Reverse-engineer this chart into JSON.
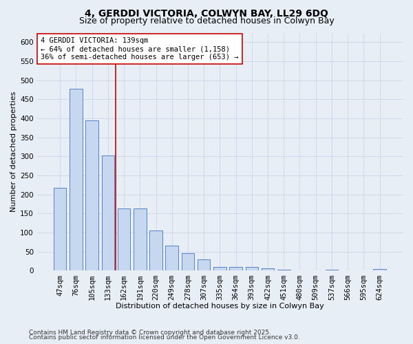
{
  "title_line1": "4, GERDDI VICTORIA, COLWYN BAY, LL29 6DQ",
  "title_line2": "Size of property relative to detached houses in Colwyn Bay",
  "xlabel": "Distribution of detached houses by size in Colwyn Bay",
  "ylabel": "Number of detached properties",
  "categories": [
    "47sqm",
    "76sqm",
    "105sqm",
    "133sqm",
    "162sqm",
    "191sqm",
    "220sqm",
    "249sqm",
    "278sqm",
    "307sqm",
    "335sqm",
    "364sqm",
    "393sqm",
    "422sqm",
    "451sqm",
    "480sqm",
    "509sqm",
    "537sqm",
    "566sqm",
    "595sqm",
    "624sqm"
  ],
  "values": [
    218,
    478,
    395,
    302,
    163,
    163,
    105,
    65,
    46,
    30,
    10,
    10,
    10,
    7,
    3,
    0,
    0,
    2,
    0,
    0,
    4
  ],
  "bar_color": "#c5d8ef",
  "bar_edge_color": "#4472c4",
  "vline_x_index": 3,
  "vline_color": "#cc0000",
  "annotation_text": "4 GERDDI VICTORIA: 139sqm\n← 64% of detached houses are smaller (1,158)\n36% of semi-detached houses are larger (653) →",
  "annotation_box_color": "#ffffff",
  "annotation_box_edge_color": "#cc0000",
  "grid_color": "#ccd6e8",
  "background_color": "#e8eef5",
  "ylim": [
    0,
    625
  ],
  "yticks": [
    0,
    50,
    100,
    150,
    200,
    250,
    300,
    350,
    400,
    450,
    500,
    550,
    600
  ],
  "footer_line1": "Contains HM Land Registry data © Crown copyright and database right 2025.",
  "footer_line2": "Contains public sector information licensed under the Open Government Licence v3.0.",
  "title_fontsize": 10,
  "subtitle_fontsize": 9,
  "axis_label_fontsize": 8,
  "tick_fontsize": 7.5,
  "annotation_fontsize": 7.5,
  "footer_fontsize": 6.5
}
